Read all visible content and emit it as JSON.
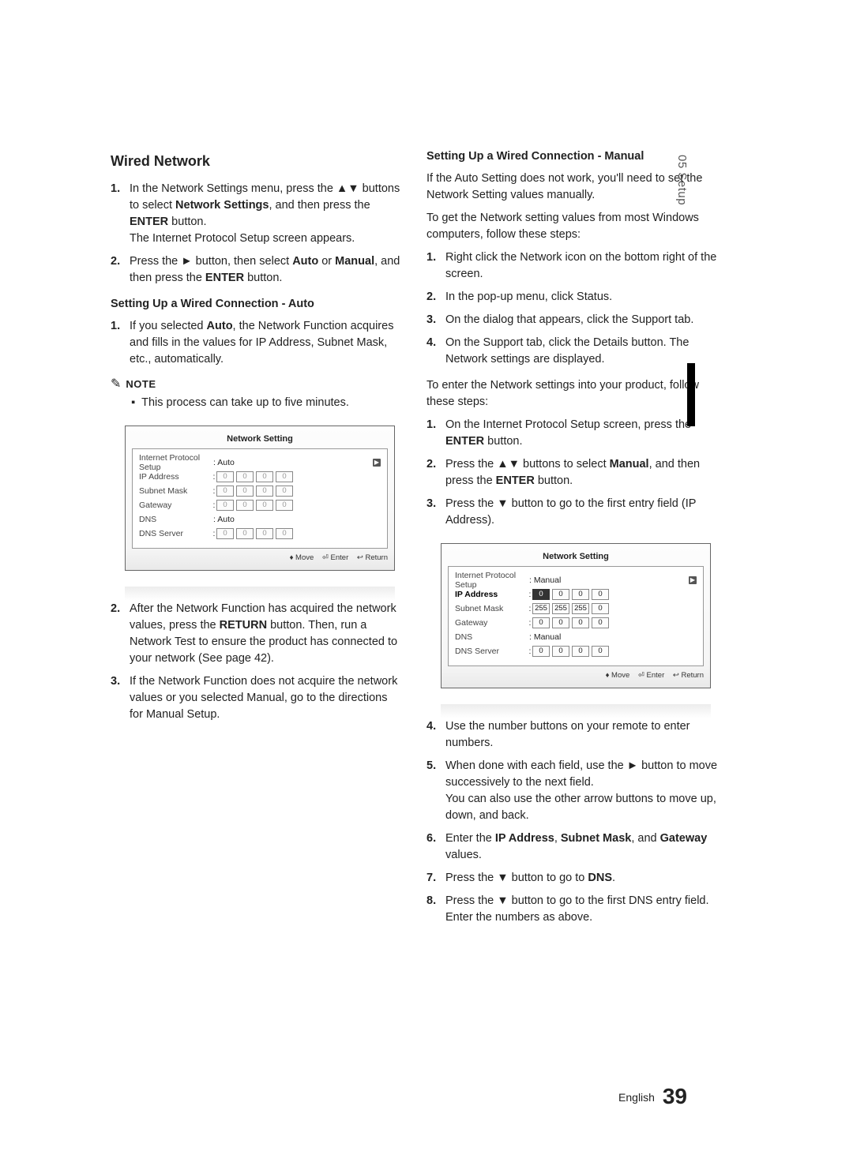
{
  "side_tab": "05  Setup",
  "page_footer": {
    "lang": "English",
    "num": "39"
  },
  "left": {
    "heading": "Wired Network",
    "intro_steps": [
      {
        "n": "1.",
        "text_parts": [
          "In the Network Settings menu, press the ▲▼ buttons to select ",
          {
            "b": "Network Settings"
          },
          ", and then press the ",
          {
            "b": "ENTER"
          },
          " button.\nThe Internet Protocol Setup screen appears."
        ]
      },
      {
        "n": "2.",
        "text_parts": [
          "Press the ► button, then select ",
          {
            "b": "Auto"
          },
          " or ",
          {
            "b": "Manual"
          },
          ", and then press the ",
          {
            "b": "ENTER"
          },
          " button."
        ]
      }
    ],
    "auto_subhead": "Setting Up a Wired Connection - Auto",
    "auto_steps_top": [
      {
        "n": "1.",
        "text_parts": [
          "If you selected ",
          {
            "b": "Auto"
          },
          ", the Network Function acquires and fills in the values for IP Address, Subnet Mask, etc., automatically."
        ]
      }
    ],
    "note_label": "NOTE",
    "note_text": "This process can take up to five minutes.",
    "auto_steps_bottom": [
      {
        "n": "2.",
        "text_parts": [
          "After the Network Function has acquired the network values, press the ",
          {
            "b": "RETURN"
          },
          " button. Then, run a Network Test to ensure the product has connected to your network (See page 42)."
        ]
      },
      {
        "n": "3.",
        "text_parts": [
          "If the Network Function does not acquire the network values or you selected Manual, go to the directions for Manual Setup."
        ]
      }
    ]
  },
  "right": {
    "manual_subhead": "Setting Up a Wired Connection - Manual",
    "intro1": "If the Auto Setting does not work, you'll need to set the Network Setting values manually.",
    "intro2": "To get the Network setting values from most Windows computers, follow these steps:",
    "win_steps": [
      {
        "n": "1.",
        "text_parts": [
          "Right click the Network icon on the bottom right of the screen."
        ]
      },
      {
        "n": "2.",
        "text_parts": [
          "In the pop-up menu, click Status."
        ]
      },
      {
        "n": "3.",
        "text_parts": [
          "On the dialog that appears, click the Support tab."
        ]
      },
      {
        "n": "4.",
        "text_parts": [
          "On the Support tab, click the Details button. The Network settings are displayed."
        ]
      }
    ],
    "enter_intro": "To enter the Network settings into your product, follow these steps:",
    "enter_steps_top": [
      {
        "n": "1.",
        "text_parts": [
          "On the Internet Protocol Setup screen, press the ",
          {
            "b": "ENTER"
          },
          " button."
        ]
      },
      {
        "n": "2.",
        "text_parts": [
          "Press the ▲▼ buttons to select ",
          {
            "b": "Manual"
          },
          ", and then press the ",
          {
            "b": "ENTER"
          },
          " button."
        ]
      },
      {
        "n": "3.",
        "text_parts": [
          "Press the ▼ button to go to the first entry field (IP Address)."
        ]
      }
    ],
    "enter_steps_bottom": [
      {
        "n": "4.",
        "text_parts": [
          "Use the number buttons on your remote to enter numbers."
        ]
      },
      {
        "n": "5.",
        "text_parts": [
          "When done with each field, use the ► button to move successively to the next field.\nYou can also use the other arrow buttons to move up, down, and back."
        ]
      },
      {
        "n": "6.",
        "text_parts": [
          "Enter the ",
          {
            "b": "IP Address"
          },
          ", ",
          {
            "b": "Subnet Mask"
          },
          ", and ",
          {
            "b": "Gateway"
          },
          " values."
        ]
      },
      {
        "n": "7.",
        "text_parts": [
          "Press the ▼ button to go to ",
          {
            "b": "DNS"
          },
          "."
        ]
      },
      {
        "n": "8.",
        "text_parts": [
          "Press the ▼ button to go to the first DNS entry field. Enter the numbers as above."
        ]
      }
    ]
  },
  "panel_auto": {
    "title": "Network Setting",
    "rows": [
      {
        "label": "Internet Protocol Setup",
        "mode": "text",
        "value": ": Auto",
        "arrow": true,
        "active": false
      },
      {
        "label": "IP Address",
        "mode": "ip",
        "oct": [
          "0",
          "0",
          "0",
          "0"
        ],
        "fade": true
      },
      {
        "label": "Subnet Mask",
        "mode": "ip",
        "oct": [
          "0",
          "0",
          "0",
          "0"
        ],
        "fade": true
      },
      {
        "label": "Gateway",
        "mode": "ip",
        "oct": [
          "0",
          "0",
          "0",
          "0"
        ],
        "fade": true
      },
      {
        "label": "DNS",
        "mode": "text",
        "value": ": Auto"
      },
      {
        "label": "DNS Server",
        "mode": "ip",
        "oct": [
          "0",
          "0",
          "0",
          "0"
        ],
        "fade": true
      }
    ],
    "footer": [
      "> Move",
      "e Enter",
      "' Return"
    ],
    "footer_display": [
      "♦ Move",
      "⏎ Enter",
      "↩ Return"
    ]
  },
  "panel_manual": {
    "title": "Network Setting",
    "rows": [
      {
        "label": "Internet Protocol Setup",
        "mode": "text",
        "value": ": Manual",
        "arrow": true
      },
      {
        "label": "IP Address",
        "mode": "ip",
        "oct": [
          "0",
          "0",
          "0",
          "0"
        ],
        "active": true,
        "sel0": true
      },
      {
        "label": "Subnet Mask",
        "mode": "ip",
        "oct": [
          "255",
          "255",
          "255",
          "0"
        ]
      },
      {
        "label": "Gateway",
        "mode": "ip",
        "oct": [
          "0",
          "0",
          "0",
          "0"
        ]
      },
      {
        "label": "DNS",
        "mode": "text",
        "value": ": Manual"
      },
      {
        "label": "DNS Server",
        "mode": "ip",
        "oct": [
          "0",
          "0",
          "0",
          "0"
        ]
      }
    ],
    "footer_display": [
      "♦ Move",
      "⏎ Enter",
      "↩ Return"
    ]
  },
  "colors": {
    "text": "#222222",
    "border": "#666666",
    "panel_border_inner": "#999999",
    "footer_text": "#333333"
  }
}
